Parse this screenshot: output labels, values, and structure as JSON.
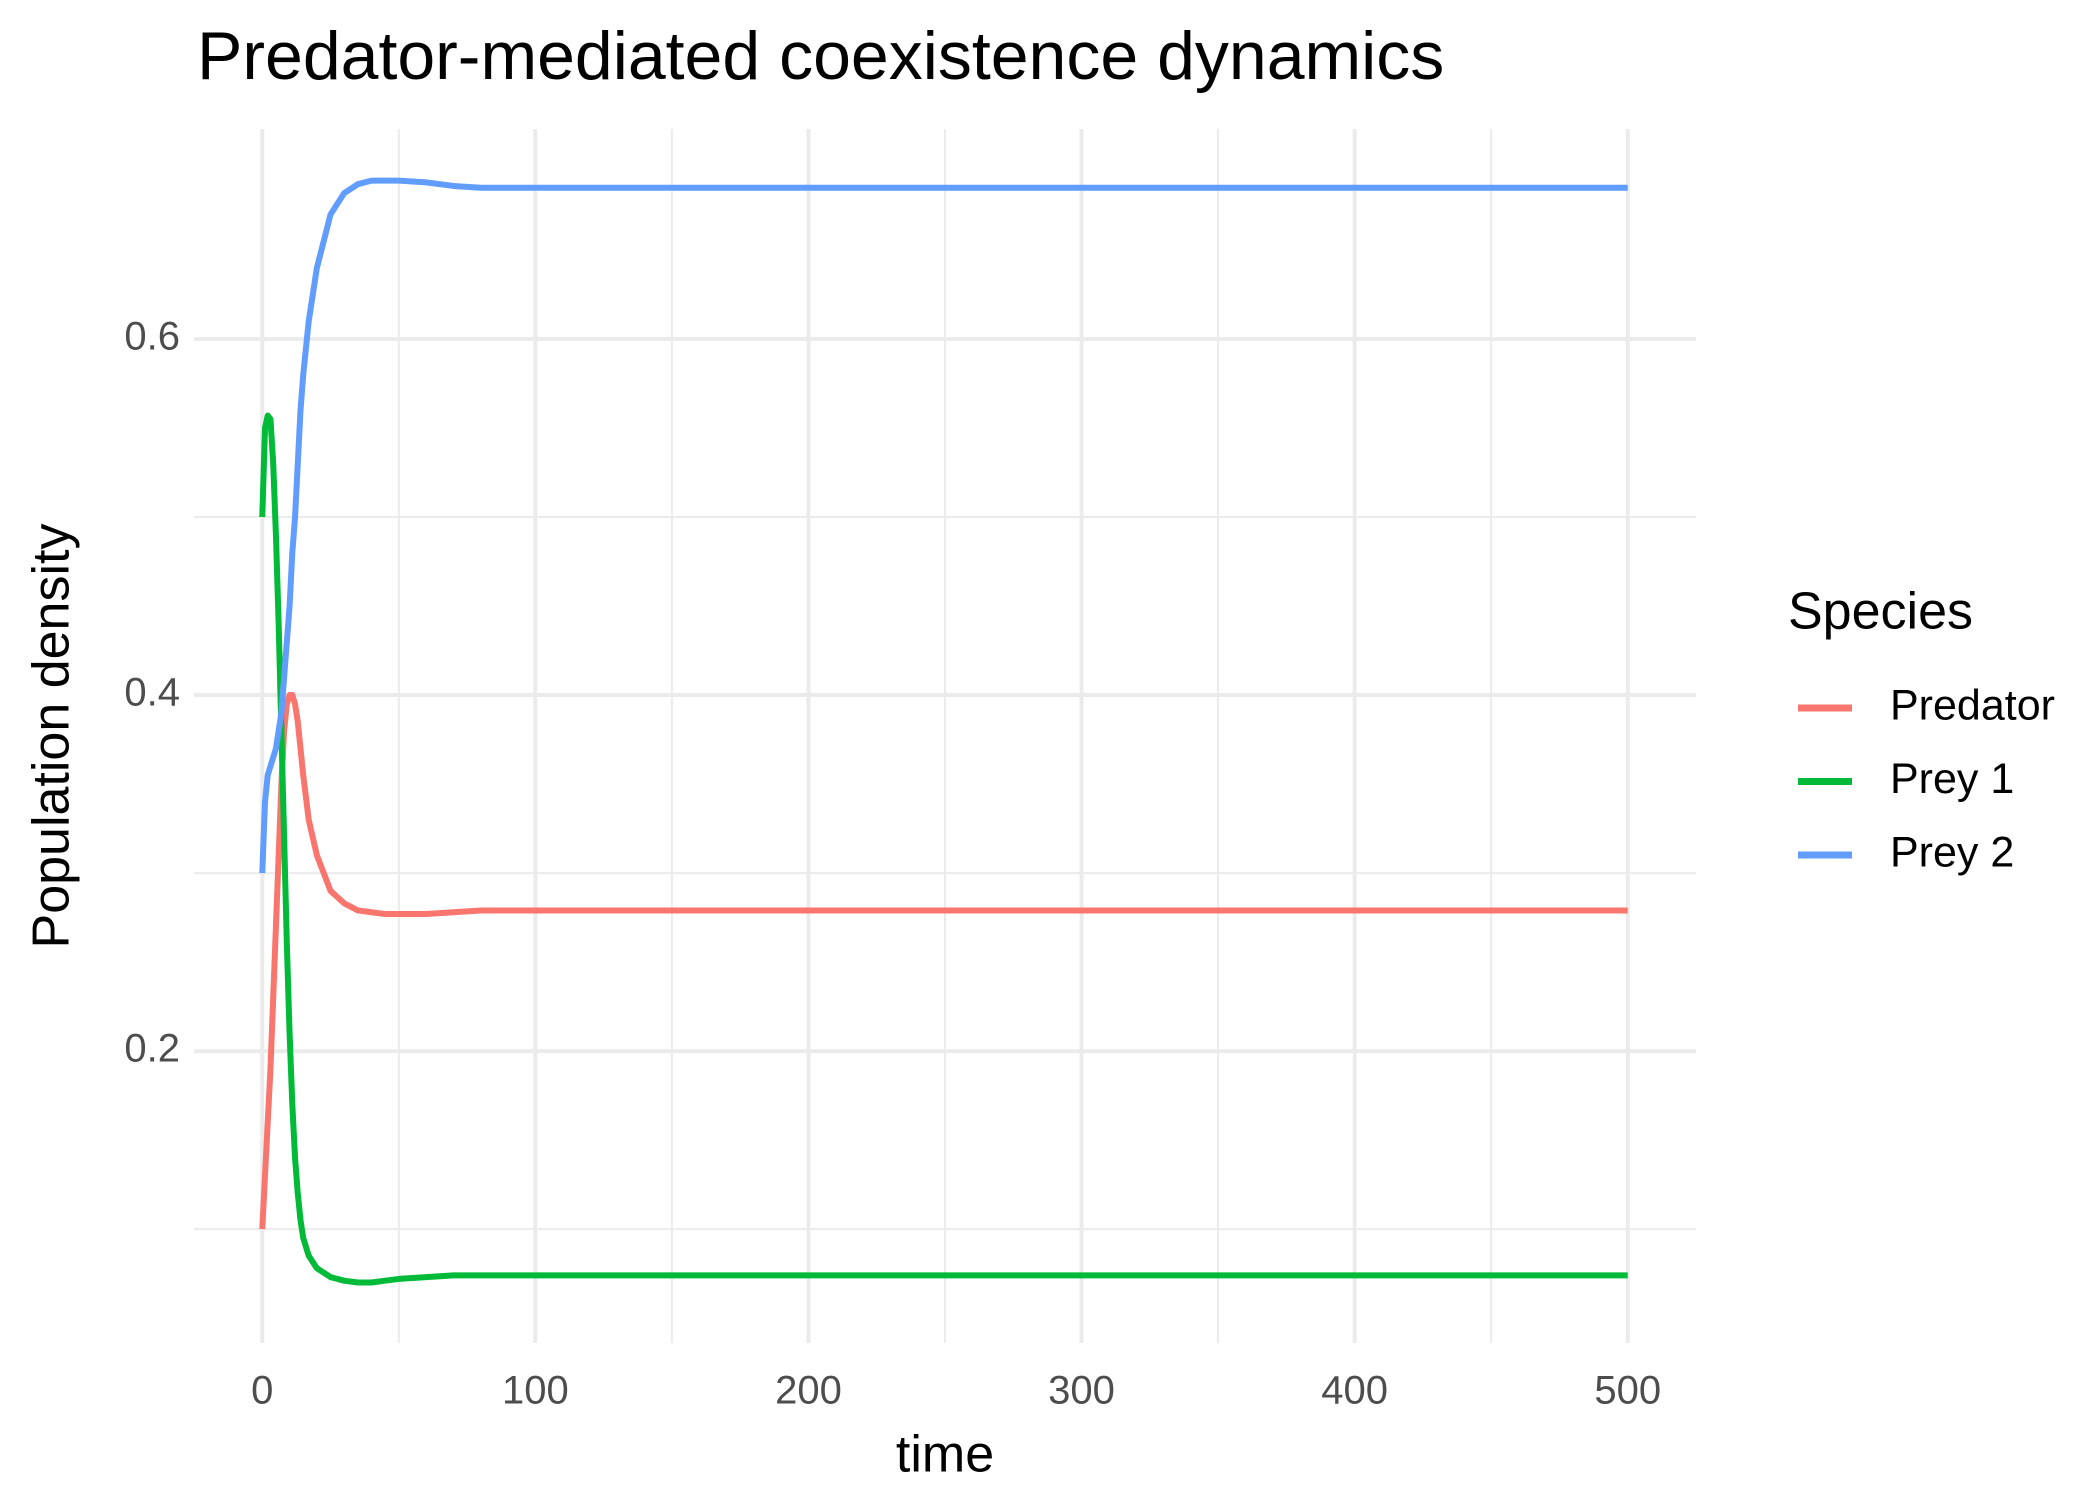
{
  "chart_data": {
    "type": "line",
    "title": "Predator-mediated coexistence dynamics",
    "x_label": "time",
    "y_label": "Population density",
    "legend_title": "Species",
    "legend_position": "right",
    "grid": true,
    "x": [
      0,
      1,
      2,
      3,
      4,
      5,
      6,
      7,
      8,
      9,
      10,
      11,
      12,
      13,
      14,
      15,
      17,
      20,
      25,
      30,
      35,
      40,
      45,
      50,
      60,
      70,
      80,
      100,
      150,
      200,
      300,
      400,
      500
    ],
    "series": [
      {
        "name": "Predator",
        "color": "#f8766d",
        "values": [
          0.1,
          0.13,
          0.16,
          0.19,
          0.23,
          0.27,
          0.31,
          0.35,
          0.38,
          0.395,
          0.4,
          0.4,
          0.395,
          0.385,
          0.37,
          0.355,
          0.33,
          0.31,
          0.29,
          0.283,
          0.279,
          0.278,
          0.277,
          0.277,
          0.277,
          0.278,
          0.279,
          0.279,
          0.279,
          0.279,
          0.279,
          0.279,
          0.279
        ]
      },
      {
        "name": "Prey 1",
        "color": "#00ba38",
        "values": [
          0.5,
          0.55,
          0.557,
          0.555,
          0.53,
          0.49,
          0.44,
          0.38,
          0.32,
          0.26,
          0.21,
          0.17,
          0.14,
          0.12,
          0.105,
          0.095,
          0.085,
          0.078,
          0.073,
          0.071,
          0.07,
          0.07,
          0.071,
          0.072,
          0.073,
          0.074,
          0.074,
          0.074,
          0.074,
          0.074,
          0.074,
          0.074,
          0.074
        ]
      },
      {
        "name": "Prey 2",
        "color": "#619cff",
        "values": [
          0.3,
          0.34,
          0.355,
          0.36,
          0.365,
          0.37,
          0.38,
          0.39,
          0.41,
          0.43,
          0.45,
          0.48,
          0.5,
          0.53,
          0.56,
          0.58,
          0.61,
          0.64,
          0.67,
          0.682,
          0.687,
          0.689,
          0.689,
          0.689,
          0.688,
          0.686,
          0.685,
          0.685,
          0.685,
          0.685,
          0.685,
          0.685,
          0.685
        ]
      }
    ],
    "xlim": [
      -25,
      525
    ],
    "xticks": [
      0,
      100,
      200,
      300,
      400,
      500
    ],
    "x_minor_ticks": [
      50,
      150,
      250,
      350,
      450
    ],
    "ylim": [
      0.036,
      0.718
    ],
    "yticks": [
      0.2,
      0.4,
      0.6
    ],
    "y_minor_ticks": [
      0.1,
      0.3,
      0.5
    ]
  }
}
